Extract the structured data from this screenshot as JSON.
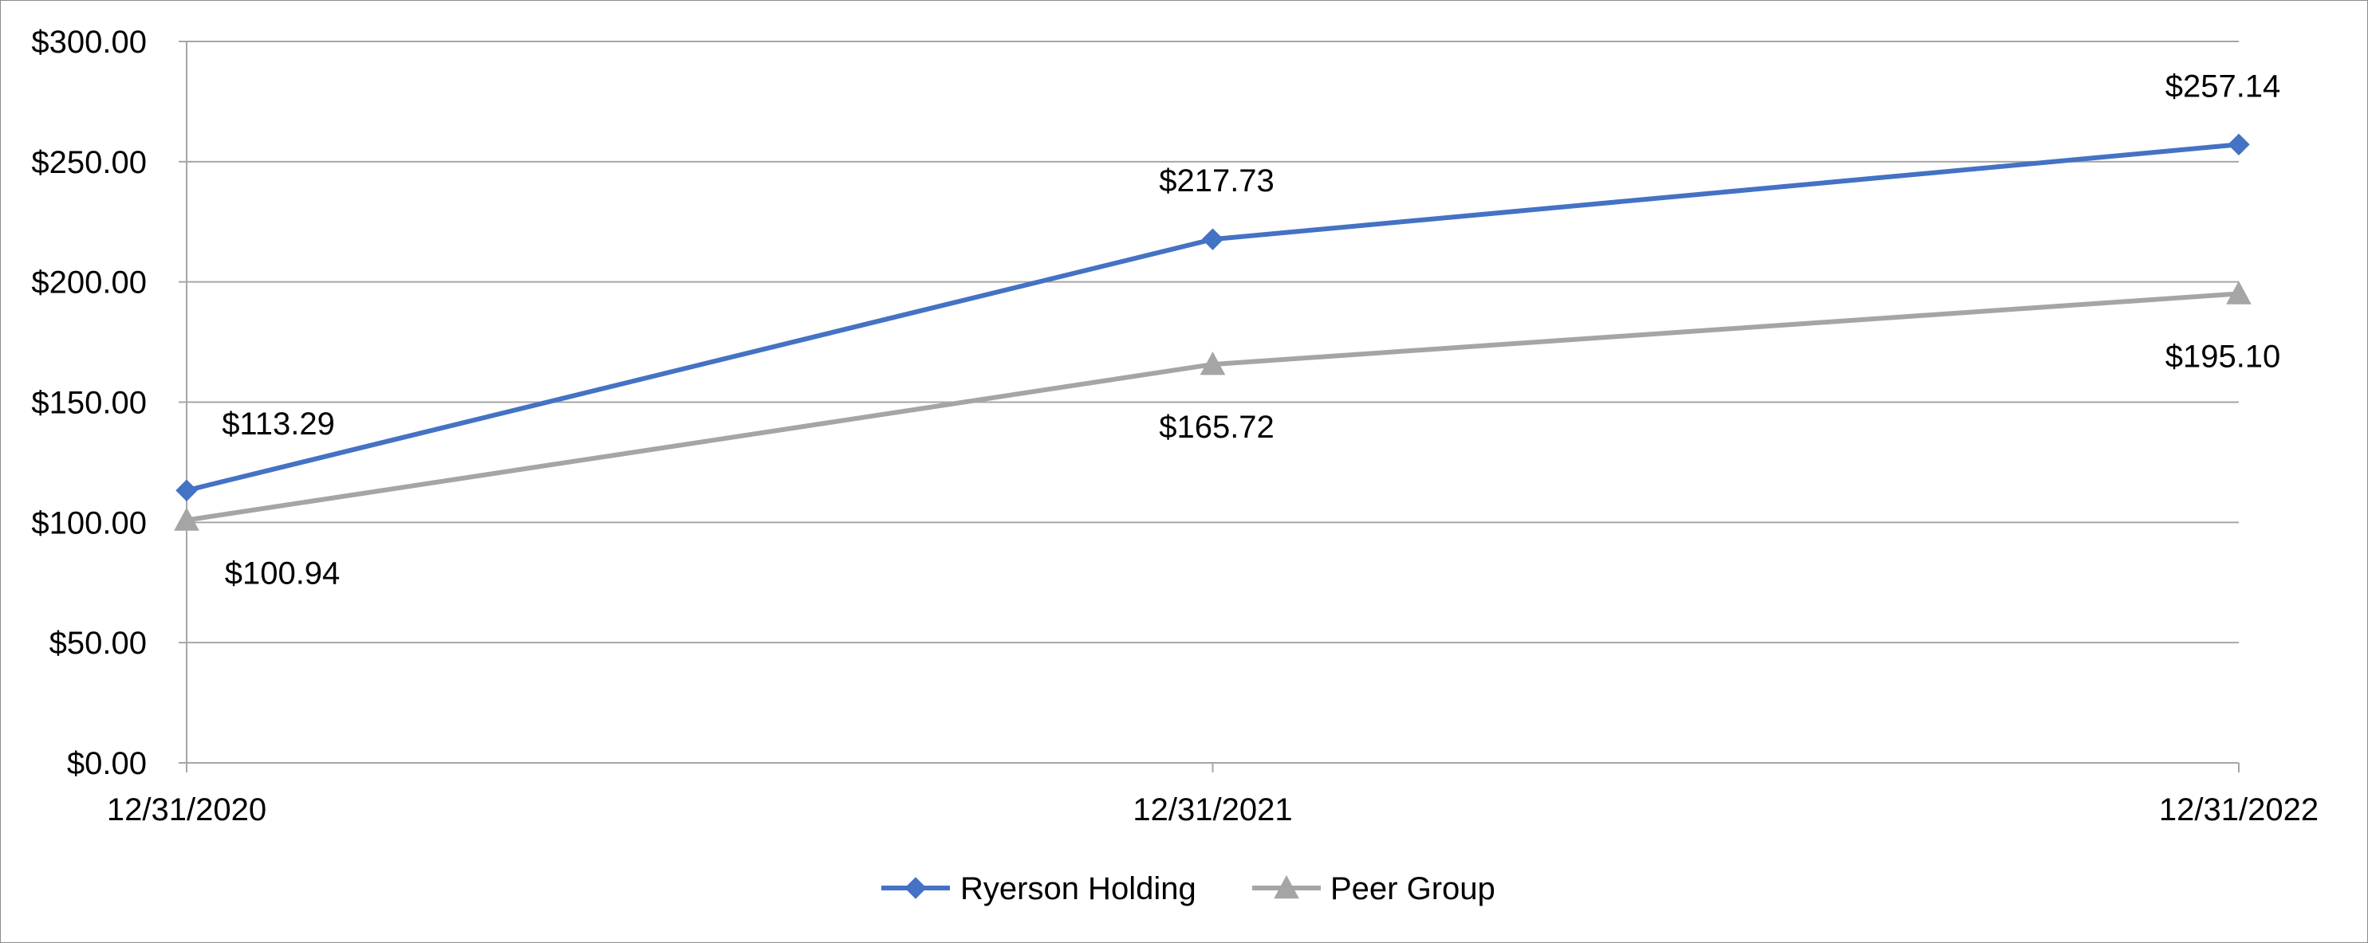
{
  "chart_data": {
    "type": "line",
    "title": "",
    "xlabel": "",
    "ylabel": "",
    "categories": [
      "12/31/2020",
      "12/31/2021",
      "12/31/2022"
    ],
    "ylim": [
      0,
      300
    ],
    "y_ticks": [
      0,
      50,
      100,
      150,
      200,
      250,
      300
    ],
    "y_tick_labels": [
      "$0.00",
      "$50.00",
      "$100.00",
      "$150.00",
      "$200.00",
      "$250.00",
      "$300.00"
    ],
    "grid": true,
    "legend_position": "bottom",
    "series": [
      {
        "name": "Ryerson Holding",
        "values": [
          113.29,
          217.73,
          257.14
        ],
        "data_labels": [
          "$113.29",
          "$217.73",
          "$257.14"
        ],
        "color": "#4472C4",
        "marker": "diamond",
        "label_position": "above"
      },
      {
        "name": "Peer Group",
        "values": [
          100.94,
          165.72,
          195.1
        ],
        "data_labels": [
          "$100.94",
          "$165.72",
          "$195.10"
        ],
        "color": "#A5A5A5",
        "marker": "triangle",
        "label_position": "below"
      }
    ],
    "gridline_color": "#A6A6A6",
    "axis_color": "#A6A6A6"
  }
}
